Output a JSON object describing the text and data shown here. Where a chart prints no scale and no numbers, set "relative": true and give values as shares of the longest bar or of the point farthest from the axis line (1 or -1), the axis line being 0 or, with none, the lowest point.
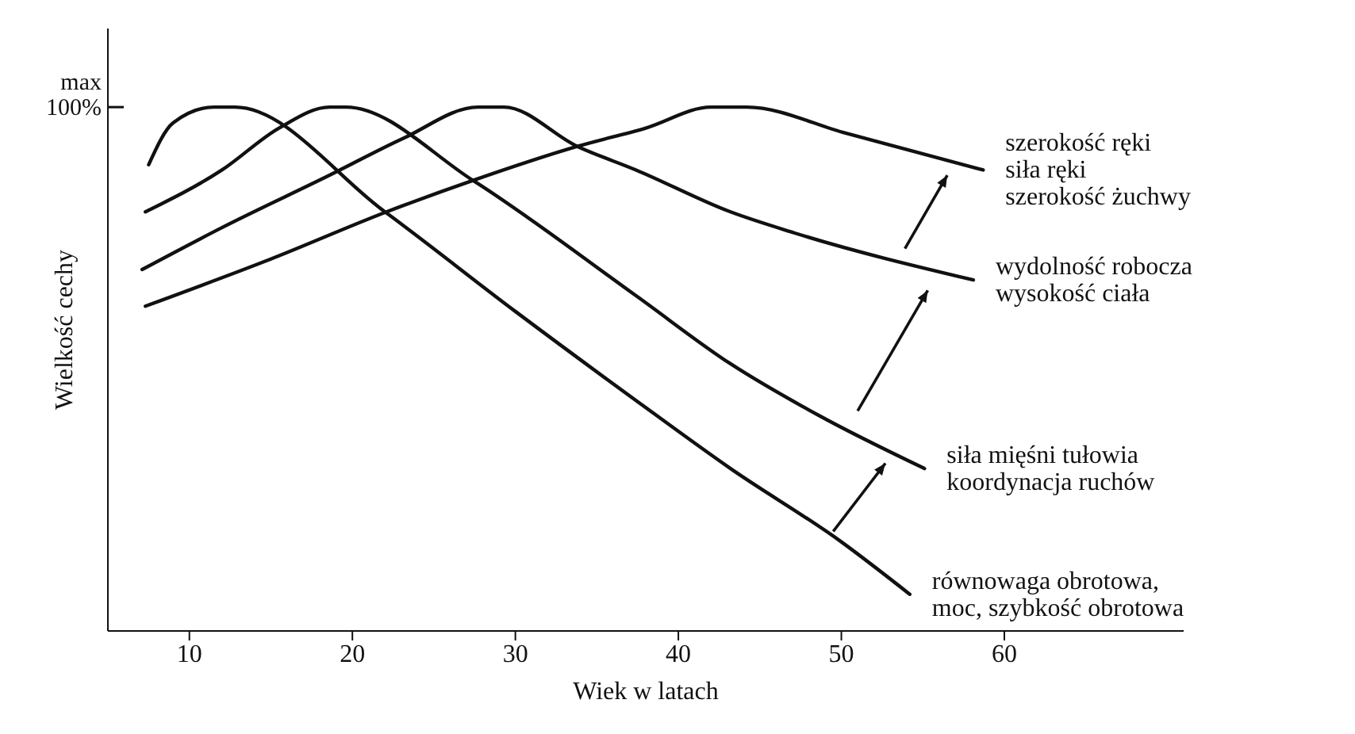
{
  "chart_data": {
    "type": "line",
    "relative": true,
    "xlabel": "Wiek w latach",
    "ylabel": "Wielkość cechy",
    "annotations": [
      "max 100%"
    ],
    "xlim": [
      5,
      71
    ],
    "xticks": [
      10,
      20,
      30,
      40,
      50,
      60
    ],
    "marker": "none",
    "line_style": "solid",
    "series": [
      {
        "name": "równowaga obrotowa,\nmoc, szybkość obrotowa",
        "color": "#111111",
        "x": [
          7.5,
          9,
          11.5,
          12.8,
          22,
          30,
          37.4,
          43.2,
          50,
          54.2
        ],
        "values": [
          0.89,
          0.97,
          1,
          1,
          0.8,
          0.61,
          0.44,
          0.31,
          0.17,
          0.07
        ]
      },
      {
        "name": "siła mięśni tułowia\nkoordynacja ruchów",
        "color": "#111111",
        "x": [
          7.3,
          12,
          15.5,
          18.6,
          19.6,
          27.4,
          37.4,
          43.2,
          48.7,
          55.1
        ],
        "values": [
          0.8,
          0.88,
          0.96,
          1,
          1,
          0.86,
          0.64,
          0.51,
          0.41,
          0.31
        ]
      },
      {
        "name": "wydolność robocza\nwysokość ciała",
        "color": "#111111",
        "x": [
          7.1,
          12,
          18.6,
          23.1,
          27.7,
          29.3,
          33.8,
          37.4,
          43.2,
          47.1,
          58.1
        ],
        "values": [
          0.69,
          0.77,
          0.87,
          0.94,
          1,
          1,
          0.925,
          0.88,
          0.8,
          0.76,
          0.67
        ]
      },
      {
        "name": "szerokość ręki\nsiła ręki\nszerokość żuchwy",
        "color": "#111111",
        "x": [
          7.3,
          15,
          22.1,
          27.4,
          33.8,
          38,
          42,
          44.2,
          50.3,
          58.7
        ],
        "values": [
          0.62,
          0.71,
          0.8,
          0.86,
          0.925,
          0.96,
          1,
          1,
          0.95,
          0.88
        ]
      }
    ]
  }
}
